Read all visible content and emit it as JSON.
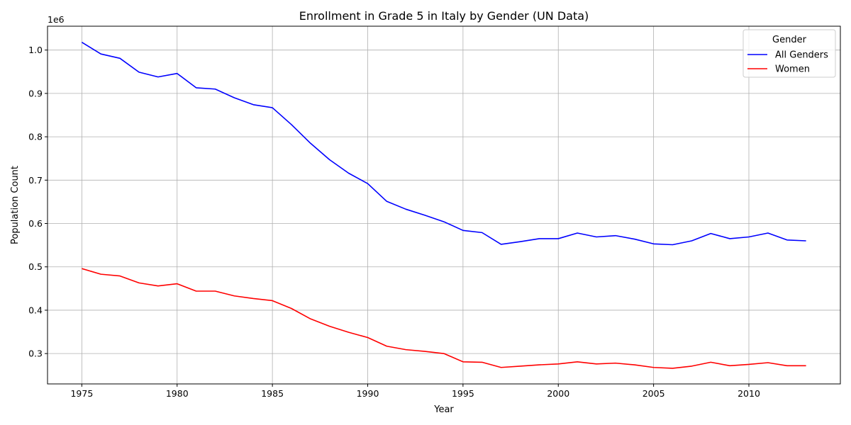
{
  "chart_data": {
    "type": "line",
    "title": "Enrollment in Grade 5 in Italy by Gender (UN Data)",
    "xlabel": "Year",
    "ylabel": "Population Count",
    "y_offset_label": "1e6",
    "xlim": [
      1973.2,
      2014.8
    ],
    "ylim": [
      230000,
      1055000
    ],
    "x_ticks": [
      1975,
      1980,
      1985,
      1990,
      1995,
      2000,
      2005,
      2010
    ],
    "y_ticks": [
      300000,
      400000,
      500000,
      600000,
      700000,
      800000,
      900000,
      1000000
    ],
    "y_tick_labels": [
      "0.3",
      "0.4",
      "0.5",
      "0.6",
      "0.7",
      "0.8",
      "0.9",
      "1.0"
    ],
    "grid": true,
    "legend": {
      "title": "Gender",
      "placement": "top-right"
    },
    "x": [
      1975,
      1976,
      1977,
      1978,
      1979,
      1980,
      1981,
      1982,
      1983,
      1984,
      1985,
      1986,
      1987,
      1988,
      1989,
      1990,
      1991,
      1992,
      1993,
      1994,
      1995,
      1996,
      1997,
      1998,
      1999,
      2000,
      2001,
      2002,
      2003,
      2004,
      2005,
      2006,
      2007,
      2008,
      2009,
      2010,
      2011,
      2012,
      2013
    ],
    "series": [
      {
        "name": "All Genders",
        "color": "#0000ff",
        "values": [
          1018000,
          991000,
          981000,
          949000,
          938000,
          946000,
          913000,
          910000,
          890000,
          874000,
          867000,
          828000,
          785000,
          747000,
          716000,
          692000,
          651000,
          633000,
          619000,
          604000,
          584000,
          579000,
          552000,
          558000,
          565000,
          565000,
          578000,
          569000,
          572000,
          564000,
          553000,
          551000,
          560000,
          577000,
          565000,
          569000,
          578000,
          562000,
          560000
        ]
      },
      {
        "name": "Women",
        "color": "#ff0000",
        "values": [
          496000,
          483000,
          479000,
          463000,
          456000,
          461000,
          444000,
          444000,
          433000,
          427000,
          422000,
          404000,
          380000,
          363000,
          349000,
          337000,
          317000,
          309000,
          305000,
          300000,
          281000,
          280000,
          268000,
          271000,
          274000,
          276000,
          281000,
          276000,
          278000,
          274000,
          268000,
          266000,
          271000,
          280000,
          272000,
          275000,
          279000,
          272000,
          272000
        ]
      }
    ]
  }
}
